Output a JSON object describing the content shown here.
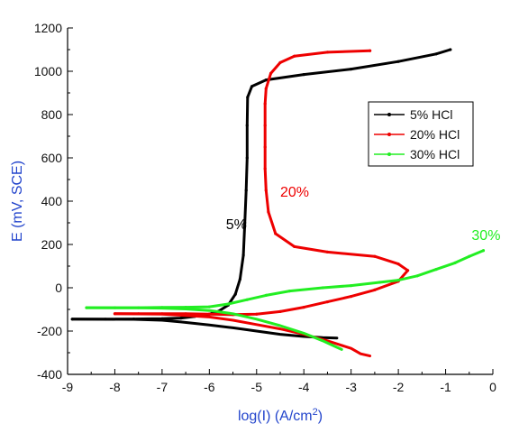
{
  "chart_data": {
    "type": "line",
    "title": "",
    "xlabel_prefix": "log(I) (A/cm",
    "xlabel_sup": "2",
    "xlabel_suffix": ")",
    "ylabel": "E (mV, SCE)",
    "xlim": [
      -9,
      0
    ],
    "ylim": [
      -400,
      1200
    ],
    "x_ticks": [
      -9,
      -8,
      -7,
      -6,
      -5,
      -4,
      -3,
      -2,
      -1,
      0
    ],
    "x_tick_labels": [
      "-9",
      "-8",
      "-7",
      "-6",
      "-5",
      "-4",
      "-3",
      "-2",
      "-1",
      "0"
    ],
    "y_ticks": [
      -400,
      -200,
      0,
      200,
      400,
      600,
      800,
      1000,
      1200
    ],
    "y_tick_labels": [
      "-400",
      "-200",
      "0",
      "200",
      "400",
      "600",
      "800",
      "1000",
      "1200"
    ],
    "grid": false,
    "legend_position": "right",
    "series": [
      {
        "name": "5% HCl",
        "color": "#000000",
        "points": [
          [
            -8.9,
            -145
          ],
          [
            -8.2,
            -145
          ],
          [
            -7.6,
            -144
          ],
          [
            -7.0,
            -143
          ],
          [
            -6.6,
            -140
          ],
          [
            -6.3,
            -132
          ],
          [
            -6.0,
            -122
          ],
          [
            -5.8,
            -108
          ],
          [
            -5.6,
            -80
          ],
          [
            -5.45,
            -30
          ],
          [
            -5.35,
            40
          ],
          [
            -5.28,
            150
          ],
          [
            -5.25,
            300
          ],
          [
            -5.22,
            450
          ],
          [
            -5.2,
            600
          ],
          [
            -5.2,
            750
          ],
          [
            -5.19,
            880
          ],
          [
            -5.1,
            930
          ],
          [
            -4.8,
            960
          ],
          [
            -4.0,
            985
          ],
          [
            -3.0,
            1010
          ],
          [
            -2.0,
            1045
          ],
          [
            -1.2,
            1080
          ],
          [
            -0.9,
            1100
          ]
        ],
        "points_cathodic": [
          [
            -8.9,
            -145
          ],
          [
            -7.6,
            -146
          ],
          [
            -7.0,
            -150
          ],
          [
            -6.6,
            -158
          ],
          [
            -6.0,
            -172
          ],
          [
            -5.5,
            -185
          ],
          [
            -5.0,
            -200
          ],
          [
            -4.5,
            -215
          ],
          [
            -4.0,
            -225
          ],
          [
            -3.6,
            -230
          ],
          [
            -3.3,
            -232
          ]
        ]
      },
      {
        "name": "20% HCl",
        "color": "#ee0000",
        "points": [
          [
            -8.0,
            -120
          ],
          [
            -7.5,
            -120
          ],
          [
            -7.0,
            -120
          ],
          [
            -6.5,
            -120
          ],
          [
            -6.0,
            -122
          ],
          [
            -5.5,
            -124
          ],
          [
            -5.0,
            -122
          ],
          [
            -4.5,
            -110
          ],
          [
            -4.0,
            -90
          ],
          [
            -3.5,
            -65
          ],
          [
            -3.0,
            -40
          ],
          [
            -2.5,
            -10
          ],
          [
            -2.0,
            30
          ],
          [
            -1.8,
            80
          ],
          [
            -2.0,
            110
          ],
          [
            -2.5,
            145
          ],
          [
            -3.5,
            165
          ],
          [
            -4.2,
            190
          ],
          [
            -4.6,
            250
          ],
          [
            -4.75,
            350
          ],
          [
            -4.8,
            450
          ],
          [
            -4.82,
            550
          ],
          [
            -4.82,
            650
          ],
          [
            -4.82,
            750
          ],
          [
            -4.82,
            850
          ],
          [
            -4.8,
            920
          ],
          [
            -4.7,
            990
          ],
          [
            -4.5,
            1040
          ],
          [
            -4.2,
            1070
          ],
          [
            -3.5,
            1088
          ],
          [
            -2.6,
            1095
          ]
        ],
        "points_cathodic": [
          [
            -8.0,
            -120
          ],
          [
            -7.0,
            -122
          ],
          [
            -6.5,
            -128
          ],
          [
            -6.0,
            -135
          ],
          [
            -5.5,
            -150
          ],
          [
            -5.0,
            -170
          ],
          [
            -4.5,
            -190
          ],
          [
            -4.0,
            -215
          ],
          [
            -3.5,
            -245
          ],
          [
            -3.0,
            -280
          ],
          [
            -2.8,
            -305
          ],
          [
            -2.6,
            -315
          ]
        ]
      },
      {
        "name": "30% HCl",
        "color": "#22ee22",
        "points": [
          [
            -8.6,
            -92
          ],
          [
            -8.0,
            -92
          ],
          [
            -7.5,
            -92
          ],
          [
            -7.0,
            -91
          ],
          [
            -6.5,
            -90
          ],
          [
            -6.0,
            -88
          ],
          [
            -5.6,
            -75
          ],
          [
            -5.2,
            -55
          ],
          [
            -4.8,
            -35
          ],
          [
            -4.3,
            -15
          ],
          [
            -3.6,
            0
          ],
          [
            -3.0,
            10
          ],
          [
            -2.4,
            25
          ],
          [
            -2.0,
            35
          ],
          [
            -1.6,
            55
          ],
          [
            -1.2,
            85
          ],
          [
            -0.8,
            115
          ],
          [
            -0.5,
            145
          ],
          [
            -0.2,
            172
          ]
        ],
        "points_cathodic": [
          [
            -8.6,
            -92
          ],
          [
            -7.5,
            -93
          ],
          [
            -7.0,
            -94
          ],
          [
            -6.5,
            -98
          ],
          [
            -6.0,
            -105
          ],
          [
            -5.5,
            -120
          ],
          [
            -5.0,
            -145
          ],
          [
            -4.5,
            -175
          ],
          [
            -4.0,
            -210
          ],
          [
            -3.6,
            -245
          ],
          [
            -3.3,
            -275
          ],
          [
            -3.2,
            -285
          ]
        ]
      }
    ],
    "annotations": [
      {
        "text": "5%",
        "x": -5.65,
        "y": 270,
        "color": "#000000"
      },
      {
        "text": "20%",
        "x": -4.5,
        "y": 420,
        "color": "#ee0000"
      },
      {
        "text": "30%",
        "x": -0.45,
        "y": 220,
        "color": "#22ee22"
      }
    ]
  }
}
